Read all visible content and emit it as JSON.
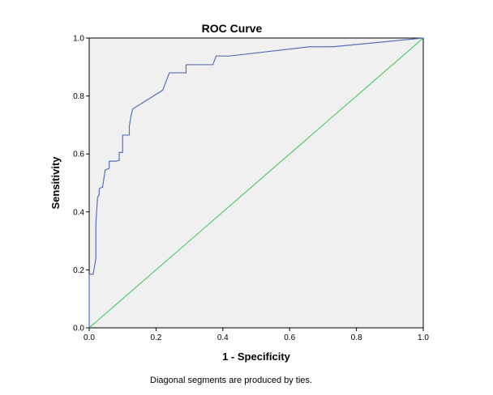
{
  "chart_data": {
    "type": "line",
    "title": "ROC Curve",
    "xlabel": "1 - Specificity",
    "ylabel": "Sensitivity",
    "xlim": [
      0,
      1
    ],
    "ylim": [
      0,
      1
    ],
    "x_ticks": [
      "0.0",
      "0.2",
      "0.4",
      "0.6",
      "0.8",
      "1.0"
    ],
    "y_ticks": [
      "0.0",
      "0.2",
      "0.4",
      "0.6",
      "0.8",
      "1.0"
    ],
    "grid": false,
    "footnote": "Diagonal segments are produced by ties.",
    "colors": {
      "plot_background": "#f0f0f0",
      "roc_line": "#5b6fbd",
      "reference_line": "#38c74a"
    },
    "series": [
      {
        "x": [
          0.0,
          0.0,
          0.012,
          0.02,
          0.02,
          0.025,
          0.03,
          0.03,
          0.038,
          0.04,
          0.048,
          0.06,
          0.06,
          0.08,
          0.09,
          0.09,
          0.1,
          0.1,
          0.12,
          0.12,
          0.125,
          0.13,
          0.22,
          0.24,
          0.29,
          0.29,
          0.37,
          0.38,
          0.42,
          0.66,
          0.73,
          1.0
        ],
        "y": [
          0.0,
          0.185,
          0.185,
          0.24,
          0.36,
          0.45,
          0.46,
          0.48,
          0.485,
          0.485,
          0.545,
          0.55,
          0.575,
          0.575,
          0.578,
          0.605,
          0.605,
          0.665,
          0.665,
          0.695,
          0.73,
          0.755,
          0.82,
          0.88,
          0.88,
          0.908,
          0.908,
          0.938,
          0.938,
          0.97,
          0.97,
          1.0
        ]
      },
      {
        "x": [
          0,
          1
        ],
        "y": [
          0,
          1
        ]
      }
    ]
  }
}
